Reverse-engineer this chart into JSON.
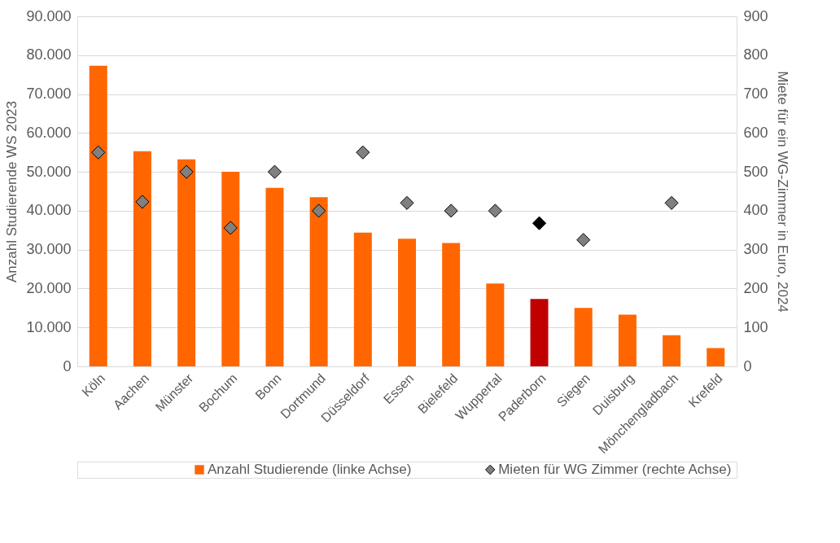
{
  "chart_data": {
    "type": "bar",
    "categories": [
      "Köln",
      "Aachen",
      "Münster",
      "Bochum",
      "Bonn",
      "Dortmund",
      "Düsseldorf",
      "Essen",
      "Bielefeld",
      "Wuppertal",
      "Paderborn",
      "Siegen",
      "Duisburg",
      "Mönchengladbach",
      "Krefeld"
    ],
    "series": [
      {
        "name": "Anzahl Studierende (linke Achse)",
        "color": "#ff6600",
        "colors": [
          "#ff6600",
          "#ff6600",
          "#ff6600",
          "#ff6600",
          "#ff6600",
          "#ff6600",
          "#ff6600",
          "#ff6600",
          "#ff6600",
          "#ff6600",
          "#c00000",
          "#ff6600",
          "#ff6600",
          "#ff6600",
          "#ff6600"
        ],
        "values": [
          77300,
          55300,
          53200,
          50000,
          45900,
          43500,
          34400,
          32800,
          31700,
          21300,
          17300,
          15000,
          13300,
          8000,
          4700
        ]
      },
      {
        "name": "Mieten für WG Zimmer (rechte Achse)",
        "type": "scatter",
        "axis": "y2",
        "marker": "diamond",
        "color": "#808080",
        "colors": [
          "#808080",
          "#808080",
          "#808080",
          "#808080",
          "#808080",
          "#808080",
          "#808080",
          "#808080",
          "#808080",
          "#808080",
          "#000000",
          "#808080",
          "#808080",
          "#808080",
          "#808080"
        ],
        "values": [
          550,
          423,
          500,
          356,
          500,
          400,
          550,
          420,
          400,
          400,
          368,
          325,
          null,
          420,
          null
        ]
      }
    ],
    "ylabel": "Anzahl Studierende WS 2023",
    "y2label": "Miete für ein WG-Zimmer in Euro, 2024",
    "ylim": [
      0,
      90000
    ],
    "yticks": [
      {
        "value": 0,
        "label": "0"
      },
      {
        "value": 10000,
        "label": "10.000"
      },
      {
        "value": 20000,
        "label": "20.000"
      },
      {
        "value": 30000,
        "label": "30.000"
      },
      {
        "value": 40000,
        "label": "40.000"
      },
      {
        "value": 50000,
        "label": "50.000"
      },
      {
        "value": 60000,
        "label": "60.000"
      },
      {
        "value": 70000,
        "label": "70.000"
      },
      {
        "value": 80000,
        "label": "80.000"
      },
      {
        "value": 90000,
        "label": "90.000"
      }
    ],
    "y2lim": [
      0,
      900
    ],
    "y2ticks": [
      0,
      100,
      200,
      300,
      400,
      500,
      600,
      700,
      800,
      900
    ],
    "grid": "y",
    "legend": "bottom"
  }
}
